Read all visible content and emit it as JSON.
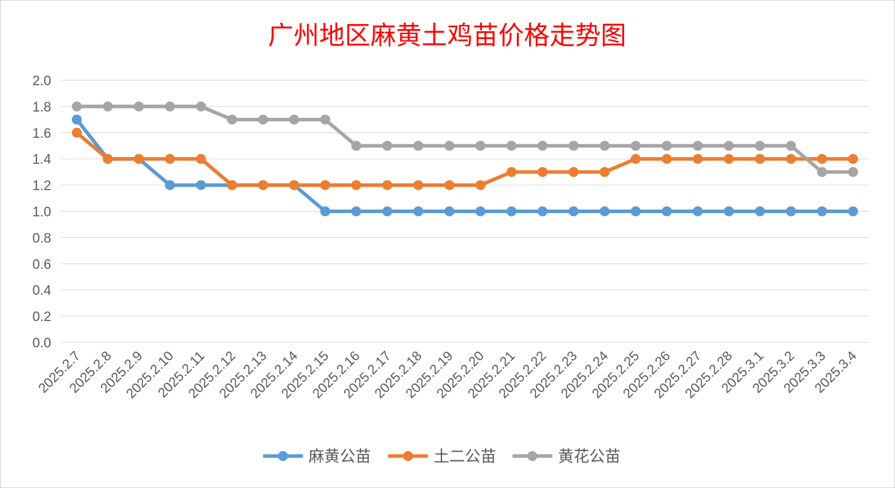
{
  "chart_data": {
    "type": "line",
    "title": "广州地区麻黄土鸡苗价格走势图",
    "xlabel": "",
    "ylabel": "",
    "categories": [
      "2025.2.7",
      "2025.2.8",
      "2025.2.9",
      "2025.2.10",
      "2025.2.11",
      "2025.2.12",
      "2025.2.13",
      "2025.2.14",
      "2025.2.15",
      "2025.2.16",
      "2025.2.17",
      "2025.2.18",
      "2025.2.19",
      "2025.2.20",
      "2025.2.21",
      "2025.2.22",
      "2025.2.23",
      "2025.2.24",
      "2025.2.25",
      "2025.2.26",
      "2025.2.27",
      "2025.2.28",
      "2025.3.1",
      "2025.3.2",
      "2025.3.3",
      "2025.3.4"
    ],
    "ylim": [
      0,
      2.0
    ],
    "yticks": [
      "0.0",
      "0.2",
      "0.4",
      "0.6",
      "0.8",
      "1.0",
      "1.2",
      "1.4",
      "1.6",
      "1.8",
      "2.0"
    ],
    "grid": true,
    "legend_position": "bottom",
    "series": [
      {
        "name": "麻黄公苗",
        "color": "#5B9BD5",
        "values": [
          1.7,
          1.4,
          1.4,
          1.2,
          1.2,
          1.2,
          1.2,
          1.2,
          1.0,
          1.0,
          1.0,
          1.0,
          1.0,
          1.0,
          1.0,
          1.0,
          1.0,
          1.0,
          1.0,
          1.0,
          1.0,
          1.0,
          1.0,
          1.0,
          1.0,
          1.0
        ]
      },
      {
        "name": "土二公苗",
        "color": "#ED7D31",
        "values": [
          1.6,
          1.4,
          1.4,
          1.4,
          1.4,
          1.2,
          1.2,
          1.2,
          1.2,
          1.2,
          1.2,
          1.2,
          1.2,
          1.2,
          1.3,
          1.3,
          1.3,
          1.3,
          1.4,
          1.4,
          1.4,
          1.4,
          1.4,
          1.4,
          1.4,
          1.4
        ]
      },
      {
        "name": "黄花公苗",
        "color": "#A5A5A5",
        "values": [
          1.8,
          1.8,
          1.8,
          1.8,
          1.8,
          1.7,
          1.7,
          1.7,
          1.7,
          1.5,
          1.5,
          1.5,
          1.5,
          1.5,
          1.5,
          1.5,
          1.5,
          1.5,
          1.5,
          1.5,
          1.5,
          1.5,
          1.5,
          1.5,
          1.3,
          1.3
        ]
      }
    ]
  },
  "colors": {
    "title": "#FF0000",
    "grid": "#D9D9D9",
    "tick_text": "#595959"
  }
}
